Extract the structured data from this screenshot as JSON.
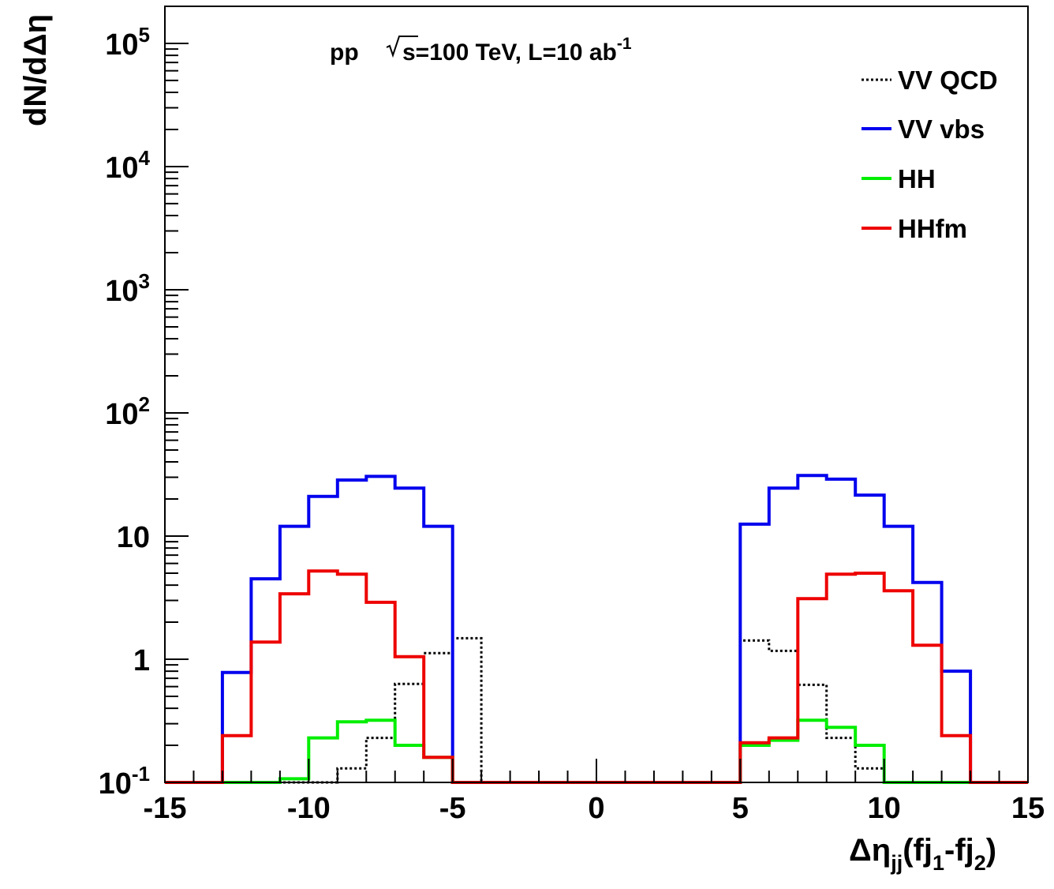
{
  "chart_data": {
    "type": "histogram",
    "title": "pp √s=100 TeV, L=10 ab⁻¹",
    "title_parts": {
      "pp": "pp",
      "sqrt_s": "s=100 TeV, L=10 ab",
      "lumi_exp": "-1"
    },
    "xlabel": "Δη_jj(fj_1-fj_2)",
    "xlabel_parts": {
      "main": "Δη",
      "sub1": "jj",
      "open": "(fj",
      "sub2": "1",
      "mid": "-fj",
      "sub3": "2",
      "close": ")"
    },
    "ylabel": "dN/dΔη",
    "x_range": [
      -15,
      15
    ],
    "y_range": [
      0.1,
      200000
    ],
    "y_scale": "log",
    "x_ticks": [
      "-15",
      "-10",
      "-5",
      "0",
      "5",
      "10",
      "15"
    ],
    "y_ticks": [
      {
        "base": "10",
        "exp": "-1"
      },
      {
        "base": "1",
        "exp": ""
      },
      {
        "base": "10",
        "exp": ""
      },
      {
        "base": "10",
        "exp": "2"
      },
      {
        "base": "10",
        "exp": "3"
      },
      {
        "base": "10",
        "exp": "4"
      },
      {
        "base": "10",
        "exp": "5"
      }
    ],
    "bin_edges": [
      -15,
      -14,
      -13,
      -12,
      -11,
      -10,
      -9,
      -8,
      -7,
      -6,
      -5,
      -4,
      -3,
      -2,
      -1,
      0,
      1,
      2,
      3,
      4,
      5,
      6,
      7,
      8,
      9,
      10,
      11,
      12,
      13,
      14,
      15
    ],
    "series": [
      {
        "name": "VV QCD",
        "color": "#000000",
        "style": "dotted",
        "values": [
          0,
          0,
          0,
          0,
          0,
          0,
          0.13,
          0.23,
          0.63,
          1.12,
          1.48,
          0,
          0,
          0,
          0,
          0,
          0,
          0,
          0,
          0,
          1.42,
          1.17,
          0.62,
          0.23,
          0.13,
          0,
          0,
          0,
          0,
          0
        ]
      },
      {
        "name": "VV vbs",
        "color": "#0000ee",
        "style": "solid",
        "values": [
          0,
          0,
          0.78,
          4.5,
          12,
          21,
          28.5,
          30.5,
          24.5,
          12,
          0,
          0,
          0,
          0,
          0,
          0,
          0,
          0,
          0,
          0,
          12.5,
          24.5,
          31,
          29,
          21.5,
          12,
          4.2,
          0.8,
          0,
          0
        ]
      },
      {
        "name": "HH",
        "color": "#00ee00",
        "style": "solid",
        "values": [
          0,
          0,
          0,
          0,
          0.107,
          0.23,
          0.31,
          0.32,
          0.2,
          0.16,
          0,
          0,
          0,
          0,
          0,
          0,
          0,
          0,
          0,
          0,
          0.2,
          0.22,
          0.32,
          0.28,
          0.2,
          0,
          0,
          0,
          0,
          0
        ]
      },
      {
        "name": "HHfm",
        "color": "#ee0000",
        "style": "solid",
        "values": [
          0,
          0,
          0.24,
          1.38,
          3.4,
          5.2,
          4.9,
          2.9,
          1.05,
          0.16,
          0,
          0,
          0,
          0,
          0,
          0,
          0,
          0,
          0,
          0,
          0.21,
          0.23,
          3.1,
          4.9,
          5.0,
          3.6,
          1.3,
          0.24,
          0,
          0
        ]
      }
    ],
    "legend_placement": "top-right",
    "grid": false
  }
}
